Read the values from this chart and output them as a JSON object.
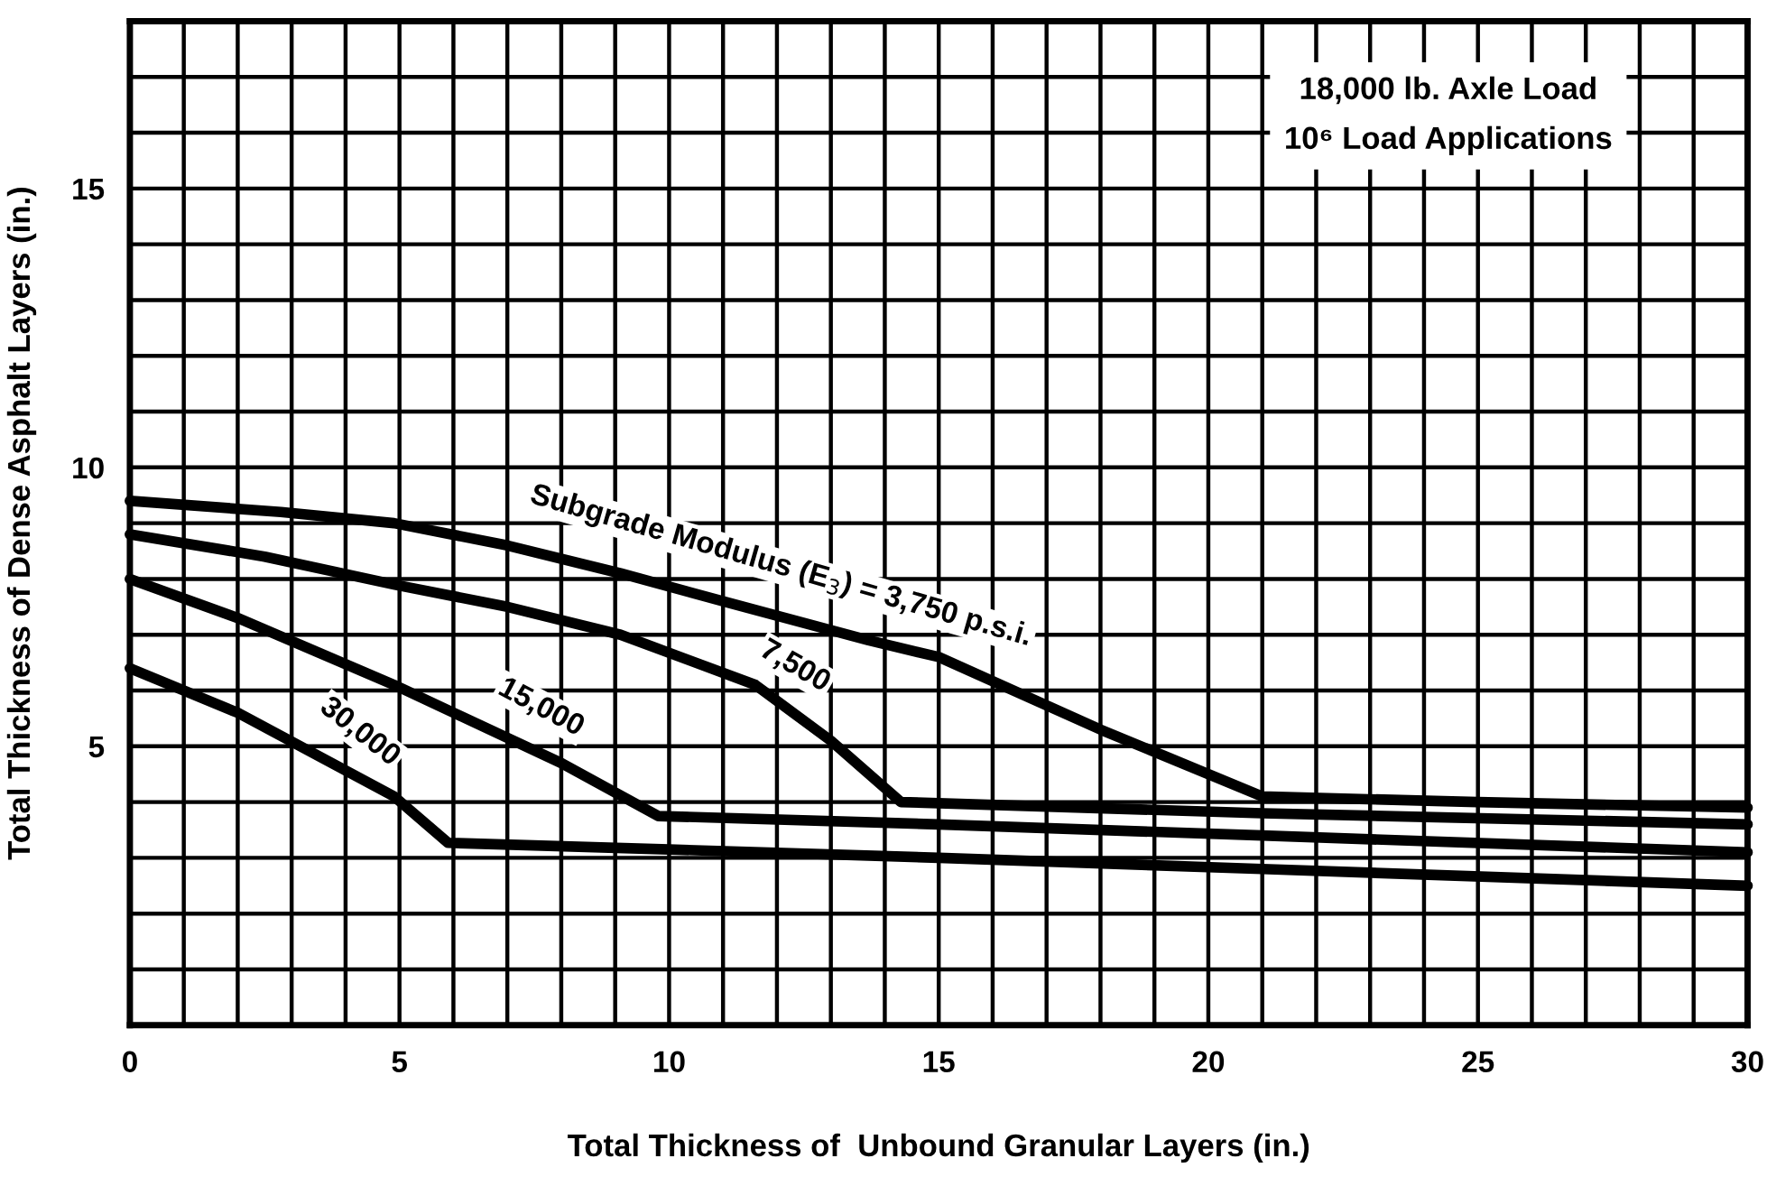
{
  "chart_data": {
    "type": "line",
    "xlabel": "Total Thickness of  Unbound Granular Layers (in.)",
    "ylabel": "Total Thickness of Dense Asphalt Layers (in.)",
    "annotations": [
      "18,000 lb. Axle Load",
      "10⁶ Load Applications"
    ],
    "xlim": [
      0,
      30
    ],
    "ylim": [
      0,
      18
    ],
    "xticks": [
      0,
      {
        "value": 1,
        "label": null
      },
      {
        "value": 2,
        "label": null
      },
      {
        "value": 3,
        "label": null
      },
      {
        "value": 4,
        "label": null
      },
      5,
      {
        "value": 6,
        "label": null
      },
      {
        "value": 7,
        "label": null
      },
      {
        "value": 8,
        "label": null
      },
      {
        "value": 9,
        "label": null
      },
      10,
      {
        "value": 11,
        "label": null
      },
      {
        "value": 12,
        "label": null
      },
      {
        "value": 13,
        "label": null
      },
      {
        "value": 14,
        "label": null
      },
      15,
      {
        "value": 16,
        "label": null
      },
      {
        "value": 17,
        "label": null
      },
      {
        "value": 18,
        "label": null
      },
      {
        "value": 19,
        "label": null
      },
      20,
      {
        "value": 21,
        "label": null
      },
      {
        "value": 22,
        "label": null
      },
      {
        "value": 23,
        "label": null
      },
      {
        "value": 24,
        "label": null
      },
      25,
      {
        "value": 26,
        "label": null
      },
      {
        "value": 27,
        "label": null
      },
      {
        "value": 28,
        "label": null
      },
      {
        "value": 29,
        "label": null
      },
      30
    ],
    "yticks": [
      {
        "value": 0,
        "label": null
      },
      {
        "value": 1,
        "label": null
      },
      {
        "value": 2,
        "label": null
      },
      {
        "value": 3,
        "label": null
      },
      {
        "value": 4,
        "label": null
      },
      5,
      {
        "value": 6,
        "label": null
      },
      {
        "value": 7,
        "label": null
      },
      {
        "value": 8,
        "label": null
      },
      {
        "value": 9,
        "label": null
      },
      10,
      {
        "value": 11,
        "label": null
      },
      {
        "value": 12,
        "label": null
      },
      {
        "value": 13,
        "label": null
      },
      {
        "value": 14,
        "label": null
      },
      15,
      {
        "value": 16,
        "label": null
      },
      {
        "value": 17,
        "label": null
      },
      {
        "value": 18,
        "label": null
      }
    ],
    "grid": true,
    "series": [
      {
        "name": "Subgrade Modulus (E$_{3}$) = 3,750 p.s.i.",
        "color": "#000000",
        "x": [
          0,
          2.8,
          4.9,
          7,
          9.1,
          11,
          13.7,
          15,
          18,
          21,
          25,
          30
        ],
        "values": [
          9.4,
          9.2,
          9.0,
          8.6,
          8.1,
          7.6,
          6.9,
          6.6,
          5.3,
          4.1,
          4.0,
          3.9
        ]
      },
      {
        "name": "7,500",
        "color": "#000000",
        "x": [
          0,
          2.5,
          4.9,
          7,
          9.1,
          11.6,
          13,
          14.3,
          21,
          30
        ],
        "values": [
          8.8,
          8.4,
          7.9,
          7.5,
          7.0,
          6.1,
          5.1,
          4.0,
          3.8,
          3.6
        ]
      },
      {
        "name": "15,000",
        "color": "#000000",
        "x": [
          0,
          2,
          4.9,
          8,
          9.8,
          15,
          21,
          30
        ],
        "values": [
          8.0,
          7.3,
          6.1,
          4.7,
          3.75,
          3.6,
          3.4,
          3.1
        ]
      },
      {
        "name": "30,000",
        "color": "#000000",
        "x": [
          0,
          2,
          4.9,
          5.9,
          10,
          15,
          21,
          30
        ],
        "values": [
          6.4,
          5.6,
          4.1,
          3.27,
          3.15,
          3.0,
          2.8,
          2.5
        ]
      }
    ]
  }
}
